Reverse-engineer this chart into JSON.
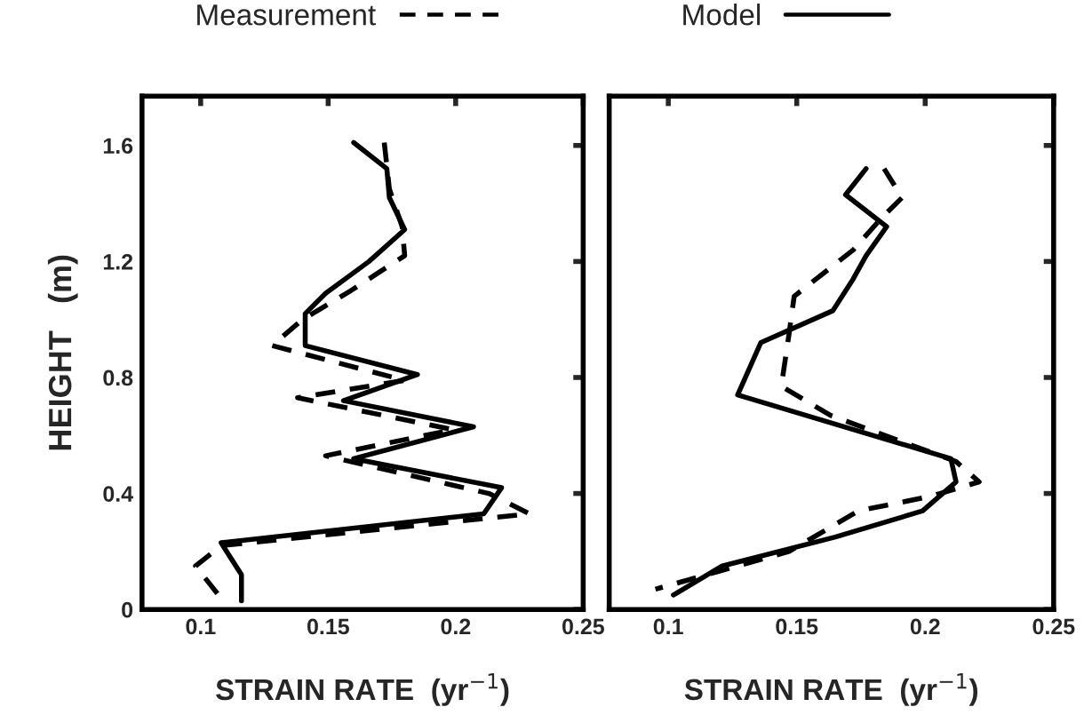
{
  "chart_data": [
    {
      "type": "line",
      "xlabel": "STRAIN RATE  (yr$^{−1}$)",
      "ylabel": "HEIGHT   (m)",
      "xlim": [
        0.077,
        0.25
      ],
      "ylim": [
        0,
        1.77
      ],
      "xticks": [
        0.1,
        0.15,
        0.2,
        0.25
      ],
      "yticks": [
        0,
        0.4,
        0.8,
        1.2,
        1.6
      ],
      "legend": "top",
      "grid": false,
      "series": [
        {
          "name": "Measurement",
          "color": "#000000",
          "line_style": "dashed",
          "x": [
            0.172,
            0.174,
            0.179,
            0.18,
            0.159,
            0.14,
            0.128,
            0.18,
            0.138,
            0.199,
            0.149,
            0.213,
            0.229,
            0.108,
            0.098,
            0.107
          ],
          "values": [
            1.61,
            1.45,
            1.32,
            1.22,
            1.1,
            1.0,
            0.91,
            0.79,
            0.73,
            0.62,
            0.53,
            0.4,
            0.33,
            0.22,
            0.15,
            0.05
          ]
        },
        {
          "name": "Model",
          "color": "#000000",
          "line_style": "solid",
          "x": [
            0.16,
            0.173,
            0.174,
            0.18,
            0.166,
            0.149,
            0.141,
            0.141,
            0.185,
            0.156,
            0.207,
            0.16,
            0.218,
            0.211,
            0.108,
            0.116,
            0.116
          ],
          "values": [
            1.61,
            1.52,
            1.42,
            1.31,
            1.2,
            1.09,
            1.02,
            0.91,
            0.81,
            0.72,
            0.63,
            0.52,
            0.42,
            0.33,
            0.23,
            0.12,
            0.03
          ]
        }
      ]
    },
    {
      "type": "line",
      "xlabel": "STRAIN RATE  (yr$^{−1}$)",
      "xlim": [
        0.077,
        0.25
      ],
      "ylim": [
        0,
        1.77
      ],
      "xticks": [
        0.1,
        0.15,
        0.2,
        0.25
      ],
      "yticks": [
        0,
        0.4,
        0.8,
        1.2,
        1.6
      ],
      "tick_labels": "x",
      "grid": false,
      "series": [
        {
          "name": "Measurement",
          "color": "#000000",
          "line_style": "dashed",
          "x": [
            0.184,
            0.191,
            0.183,
            0.172,
            0.149,
            0.147,
            0.144,
            0.163,
            0.212,
            0.221,
            0.202,
            0.174,
            0.147,
            0.119,
            0.095
          ],
          "values": [
            1.52,
            1.42,
            1.35,
            1.24,
            1.08,
            0.95,
            0.77,
            0.67,
            0.51,
            0.44,
            0.39,
            0.34,
            0.2,
            0.13,
            0.07
          ]
        },
        {
          "name": "Model",
          "color": "#000000",
          "line_style": "solid",
          "x": [
            0.177,
            0.169,
            0.185,
            0.177,
            0.172,
            0.164,
            0.136,
            0.127,
            0.21,
            0.212,
            0.199,
            0.165,
            0.121,
            0.102
          ],
          "values": [
            1.52,
            1.43,
            1.32,
            1.22,
            1.14,
            1.03,
            0.92,
            0.74,
            0.52,
            0.44,
            0.34,
            0.25,
            0.15,
            0.05
          ]
        }
      ]
    }
  ]
}
